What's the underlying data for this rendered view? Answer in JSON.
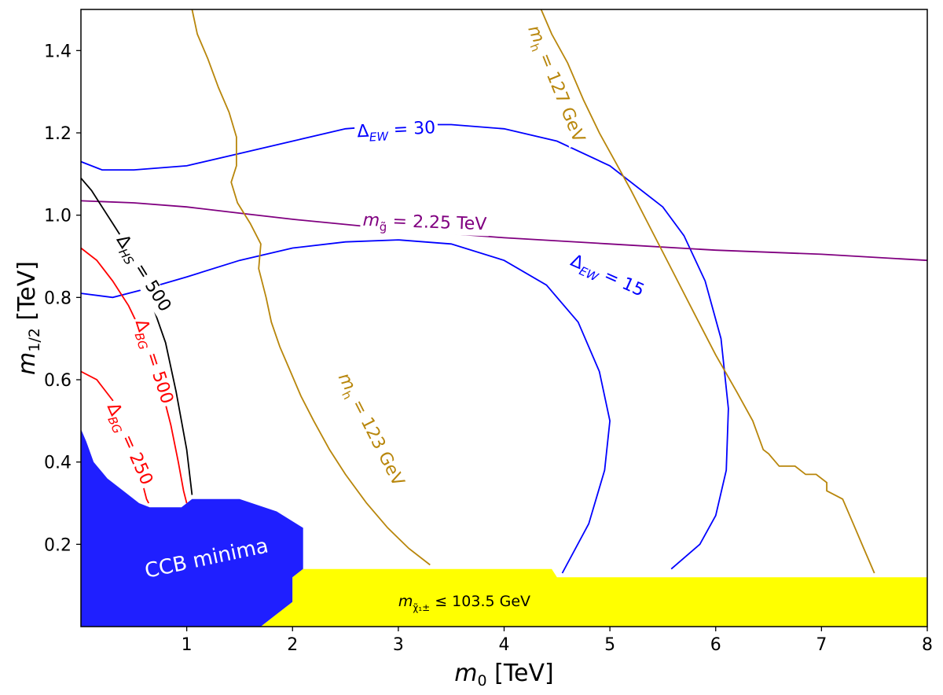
{
  "chart_data": {
    "type": "line",
    "xlabel": {
      "symbol": "m",
      "sub": "0",
      "unit": "[TeV]"
    },
    "ylabel": {
      "symbol": "m",
      "sub": "1/2",
      "unit": "[TeV]"
    },
    "xlim": [
      0,
      8
    ],
    "ylim": [
      0,
      1.5
    ],
    "x_ticks": [
      1,
      2,
      3,
      4,
      5,
      6,
      7,
      8
    ],
    "x_tick_labels": [
      "1",
      "2",
      "3",
      "4",
      "5",
      "6",
      "7",
      "8"
    ],
    "y_ticks": [
      0.2,
      0.4,
      0.6,
      0.8,
      1.0,
      1.2,
      1.4
    ],
    "y_tick_labels": [
      "0.2",
      "0.4",
      "0.6",
      "0.8",
      "1.0",
      "1.2",
      "1.4"
    ],
    "grid": false,
    "regions": [
      {
        "name": "CCB minima",
        "label": "CCB minima",
        "color": "#1f1fff",
        "label_color": "#ffffff",
        "label_pos": [
          1.2,
          0.15
        ],
        "label_rotation": -12,
        "polygon": [
          [
            0,
            0
          ],
          [
            0,
            0.48
          ],
          [
            0.05,
            0.45
          ],
          [
            0.12,
            0.4
          ],
          [
            0.25,
            0.36
          ],
          [
            0.4,
            0.33
          ],
          [
            0.55,
            0.3
          ],
          [
            0.65,
            0.29
          ],
          [
            0.95,
            0.29
          ],
          [
            1.05,
            0.31
          ],
          [
            1.5,
            0.31
          ],
          [
            1.85,
            0.28
          ],
          [
            2.1,
            0.24
          ],
          [
            2.1,
            0.14
          ],
          [
            2.0,
            0.12
          ],
          [
            2.0,
            0.06
          ],
          [
            1.8,
            0.02
          ],
          [
            1.7,
            0
          ]
        ]
      },
      {
        "name": "chargino-limit",
        "label_parts": {
          "sym": "m",
          "sub": "χ̃₁±",
          "rest": " ≤ 103.5 GeV"
        },
        "color": "#ffff00",
        "label_color": "#000000",
        "label_pos": [
          3.0,
          0.05
        ],
        "polygon": [
          [
            1.7,
            0
          ],
          [
            1.8,
            0.02
          ],
          [
            2.0,
            0.06
          ],
          [
            2.0,
            0.12
          ],
          [
            2.1,
            0.14
          ],
          [
            4.45,
            0.14
          ],
          [
            4.5,
            0.12
          ],
          [
            8,
            0.12
          ],
          [
            8,
            0
          ]
        ]
      }
    ],
    "series": [
      {
        "name": "ΔEW = 30",
        "label_parts": {
          "sym": "Δ",
          "sub": "EW",
          "rest": " = 30"
        },
        "color": "#0000ff",
        "label_pos": [
          2.98,
          1.21
        ],
        "label_rotation": -3,
        "x": [
          0,
          0.2,
          0.5,
          1,
          1.5,
          2,
          2.5,
          3,
          3.5,
          4,
          4.5,
          5,
          5.5,
          5.7,
          5.9,
          6.05,
          6.12,
          6.1,
          6.0,
          5.85,
          5.58
        ],
        "y": [
          1.13,
          1.11,
          1.11,
          1.12,
          1.15,
          1.18,
          1.21,
          1.22,
          1.22,
          1.21,
          1.18,
          1.12,
          1.02,
          0.95,
          0.84,
          0.7,
          0.53,
          0.38,
          0.27,
          0.2,
          0.14
        ]
      },
      {
        "name": "ΔEW = 15",
        "label_parts": {
          "sym": "Δ",
          "sub": "EW",
          "rest": " = 15"
        },
        "color": "#0000ff",
        "label_pos": [
          4.98,
          0.855
        ],
        "label_rotation": 24,
        "x": [
          0,
          0.3,
          0.6,
          1,
          1.5,
          2,
          2.5,
          3,
          3.5,
          4,
          4.4,
          4.7,
          4.9,
          5.0,
          4.95,
          4.8,
          4.55
        ],
        "y": [
          0.81,
          0.8,
          0.82,
          0.85,
          0.89,
          0.92,
          0.935,
          0.94,
          0.93,
          0.89,
          0.83,
          0.74,
          0.62,
          0.5,
          0.38,
          0.25,
          0.13
        ]
      },
      {
        "name": "mg̃ = 2.25 TeV",
        "label_parts": {
          "sym": "m",
          "sub": "g̃",
          "rest": " = 2.25 TeV"
        },
        "color": "#800080",
        "label_pos": [
          3.25,
          0.985
        ],
        "label_rotation": 2,
        "x": [
          0,
          0.5,
          1,
          1.5,
          2,
          3,
          4,
          5,
          6,
          7,
          8
        ],
        "y": [
          1.035,
          1.03,
          1.02,
          1.005,
          0.99,
          0.965,
          0.945,
          0.93,
          0.915,
          0.905,
          0.89
        ]
      },
      {
        "name": "ΔHS = 500",
        "label_parts": {
          "sym": "Δ",
          "sub": "HS",
          "rest": " = 500"
        },
        "color": "#000000",
        "label_pos": [
          0.6,
          0.86
        ],
        "label_rotation": 58,
        "x": [
          0,
          0.1,
          0.2,
          0.3,
          0.4,
          0.5,
          0.65,
          0.8,
          0.9,
          1.0,
          1.05
        ],
        "y": [
          1.09,
          1.06,
          1.02,
          0.98,
          0.94,
          0.89,
          0.8,
          0.69,
          0.57,
          0.43,
          0.32
        ]
      },
      {
        "name": "ΔBG = 500",
        "label_parts": {
          "sym": "Δ",
          "sub": "BG",
          "rest": " = 500"
        },
        "color": "#ff0000",
        "label_pos": [
          0.7,
          0.645
        ],
        "label_rotation": 72,
        "x": [
          0,
          0.15,
          0.3,
          0.45,
          0.6,
          0.75,
          0.85,
          0.92,
          0.97,
          1.0
        ],
        "y": [
          0.92,
          0.89,
          0.84,
          0.78,
          0.7,
          0.59,
          0.49,
          0.4,
          0.33,
          0.3
        ]
      },
      {
        "name": "ΔBG = 250",
        "label_parts": {
          "sym": "Δ",
          "sub": "BG",
          "rest": " = 250"
        },
        "color": "#ff0000",
        "label_pos": [
          0.47,
          0.445
        ],
        "label_rotation": 66,
        "x": [
          0,
          0.15,
          0.3,
          0.45,
          0.55,
          0.62,
          0.64
        ],
        "y": [
          0.62,
          0.6,
          0.55,
          0.46,
          0.38,
          0.31,
          0.3
        ]
      },
      {
        "name": "mh = 123 GeV",
        "label_parts": {
          "sym": "m",
          "sub": "h",
          "rest": " = 123 GeV"
        },
        "color": "#b8860b",
        "label_pos": [
          2.75,
          0.48
        ],
        "label_rotation": 63,
        "x": [
          1.05,
          1.1,
          1.2,
          1.3,
          1.4,
          1.47,
          1.47,
          1.42,
          1.48,
          1.6,
          1.7,
          1.68,
          1.75,
          1.8,
          1.88,
          1.98,
          2.08,
          2.2,
          2.35,
          2.5,
          2.7,
          2.9,
          3.1,
          3.3
        ],
        "y": [
          1.5,
          1.44,
          1.38,
          1.31,
          1.25,
          1.19,
          1.12,
          1.08,
          1.03,
          0.98,
          0.93,
          0.87,
          0.8,
          0.74,
          0.68,
          0.62,
          0.56,
          0.5,
          0.43,
          0.37,
          0.3,
          0.24,
          0.19,
          0.15
        ]
      },
      {
        "name": "mh = 127 GeV",
        "label_parts": {
          "sym": "m",
          "sub": "h",
          "rest": " = 127 GeV"
        },
        "color": "#b8860b",
        "label_pos": [
          4.5,
          1.32
        ],
        "label_rotation": 68,
        "x": [
          4.35,
          4.45,
          4.6,
          4.75,
          4.9,
          5.05,
          5.2,
          5.4,
          5.6,
          5.8,
          6.0,
          6.2,
          6.35,
          6.45,
          6.5,
          6.6,
          6.75,
          6.85,
          6.95,
          7.05,
          7.05,
          7.2,
          7.3,
          7.4,
          7.5
        ],
        "y": [
          1.5,
          1.44,
          1.37,
          1.28,
          1.2,
          1.13,
          1.06,
          0.96,
          0.86,
          0.76,
          0.66,
          0.57,
          0.5,
          0.43,
          0.42,
          0.39,
          0.39,
          0.37,
          0.37,
          0.35,
          0.33,
          0.31,
          0.25,
          0.19,
          0.13
        ]
      }
    ]
  }
}
